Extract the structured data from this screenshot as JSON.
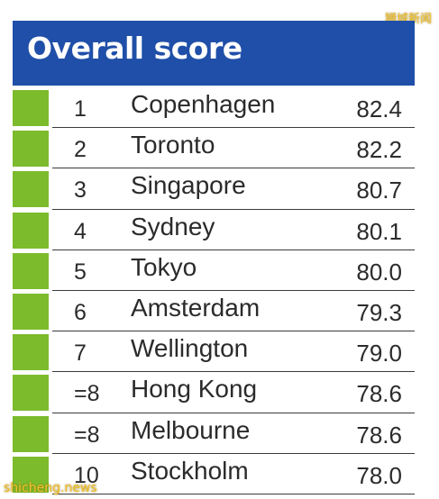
{
  "watermarks": {
    "top": "狮城新闻",
    "bottom": "shicheng.news"
  },
  "colors": {
    "header_bg": "#1f4fa8",
    "swatch": "#7cbb2c",
    "text": "#2b2b2b"
  },
  "chart_data": {
    "type": "table",
    "title": "Overall score",
    "columns": [
      "",
      "",
      ""
    ],
    "rows": [
      {
        "rank": "1",
        "city": "Copenhagen",
        "score": 82.4
      },
      {
        "rank": "2",
        "city": "Toronto",
        "score": 82.2
      },
      {
        "rank": "3",
        "city": "Singapore",
        "score": 80.7
      },
      {
        "rank": "4",
        "city": "Sydney",
        "score": 80.1
      },
      {
        "rank": "5",
        "city": "Tokyo",
        "score": 80.0
      },
      {
        "rank": "6",
        "city": "Amsterdam",
        "score": 79.3
      },
      {
        "rank": "7",
        "city": "Wellington",
        "score": 79.0
      },
      {
        "rank": "=8",
        "city": "Hong Kong",
        "score": 78.6
      },
      {
        "rank": "=8",
        "city": "Melbourne",
        "score": 78.6
      },
      {
        "rank": "10",
        "city": "Stockholm",
        "score": 78.0
      }
    ]
  }
}
